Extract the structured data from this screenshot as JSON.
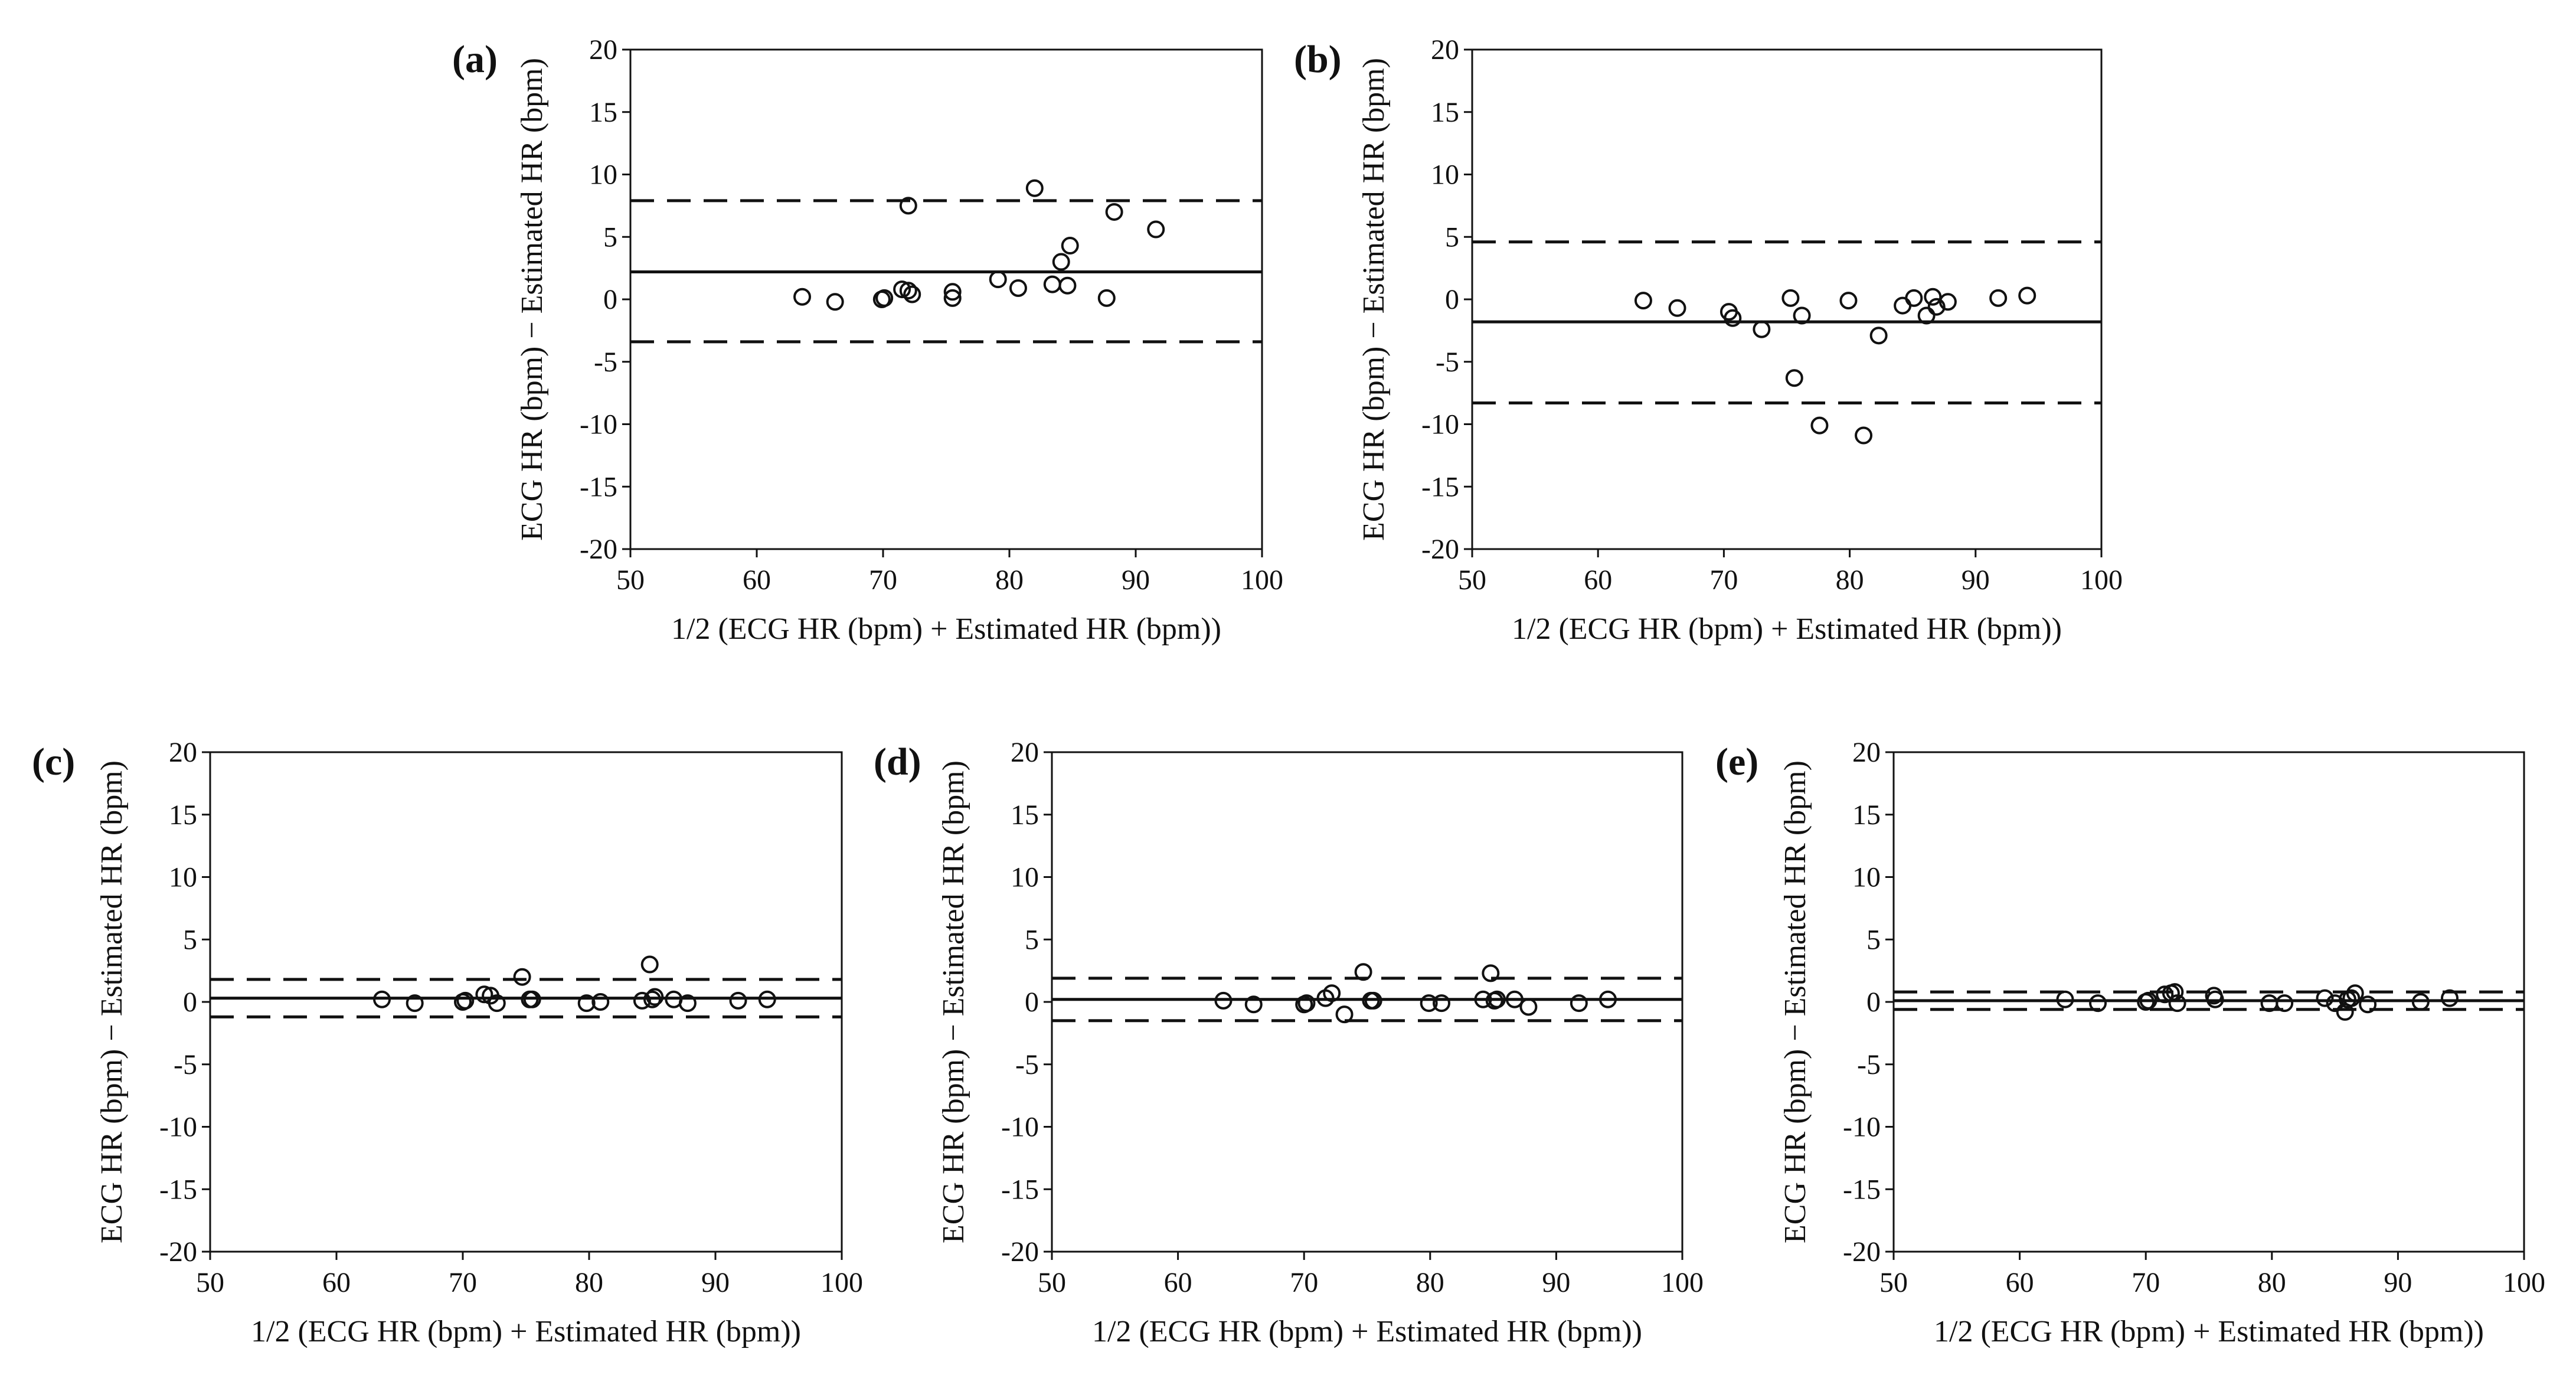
{
  "chart_data": [
    {
      "type": "scatter",
      "panel": "(a)",
      "title": "",
      "xlabel": "1/2 (ECG HR (bpm) + Estimated HR (bpm))",
      "ylabel": "ECG HR (bpm) − Estimated HR (bpm)",
      "xlim": [
        50,
        100
      ],
      "ylim": [
        -20,
        20
      ],
      "xticks": [
        50,
        60,
        70,
        80,
        90,
        100
      ],
      "yticks": [
        -20,
        -15,
        -10,
        -5,
        0,
        5,
        10,
        15,
        20
      ],
      "mean_line": 2.2,
      "limits_of_agreement": [
        7.9,
        -3.4
      ],
      "x": [
        63.6,
        66.2,
        69.9,
        70.1,
        71.5,
        72.0,
        72.3,
        72.0,
        75.5,
        75.5,
        79.1,
        80.7,
        82.0,
        83.4,
        84.1,
        84.8,
        84.6,
        87.7,
        88.3,
        91.6
      ],
      "y": [
        0.2,
        -0.2,
        0.0,
        0.1,
        0.8,
        0.7,
        0.4,
        7.5,
        0.6,
        0.1,
        1.6,
        0.9,
        8.9,
        1.2,
        3.0,
        4.3,
        1.1,
        0.1,
        7.0,
        5.6
      ]
    },
    {
      "type": "scatter",
      "panel": "(b)",
      "title": "",
      "xlabel": "1/2 (ECG HR (bpm) + Estimated HR (bpm))",
      "ylabel": "ECG HR (bpm) − Estimated HR (bpm)",
      "xlim": [
        50,
        100
      ],
      "ylim": [
        -20,
        20
      ],
      "xticks": [
        50,
        60,
        70,
        80,
        90,
        100
      ],
      "yticks": [
        -20,
        -15,
        -10,
        -5,
        0,
        5,
        10,
        15,
        20
      ],
      "mean_line": -1.8,
      "limits_of_agreement": [
        4.6,
        -8.3
      ],
      "x": [
        63.6,
        66.3,
        70.4,
        70.7,
        73.0,
        75.3,
        75.6,
        76.2,
        77.6,
        79.9,
        81.1,
        82.3,
        84.2,
        85.1,
        86.1,
        86.6,
        86.9,
        87.8,
        91.8,
        94.1
      ],
      "y": [
        -0.1,
        -0.7,
        -1.0,
        -1.5,
        -2.4,
        0.1,
        -6.3,
        -1.3,
        -10.1,
        -0.1,
        -10.9,
        -2.9,
        -0.5,
        0.1,
        -1.3,
        0.2,
        -0.6,
        -0.2,
        0.1,
        0.3
      ]
    },
    {
      "type": "scatter",
      "panel": "(c)",
      "title": "",
      "xlabel": "1/2 (ECG HR (bpm) + Estimated HR (bpm))",
      "ylabel": "ECG HR (bpm) − Estimated HR (bpm)",
      "xlim": [
        50,
        100
      ],
      "ylim": [
        -20,
        20
      ],
      "xticks": [
        50,
        60,
        70,
        80,
        90,
        100
      ],
      "yticks": [
        -20,
        -15,
        -10,
        -5,
        0,
        5,
        10,
        15,
        20
      ],
      "mean_line": 0.3,
      "limits_of_agreement": [
        1.8,
        -1.2
      ],
      "x": [
        63.6,
        66.2,
        70.0,
        70.2,
        71.7,
        72.2,
        72.7,
        74.7,
        75.3,
        75.5,
        79.8,
        80.9,
        84.2,
        84.8,
        85.2,
        85.0,
        86.7,
        87.8,
        91.8,
        94.1
      ],
      "y": [
        0.2,
        -0.1,
        0.0,
        0.1,
        0.6,
        0.5,
        -0.1,
        2.0,
        0.2,
        0.2,
        -0.1,
        0.0,
        0.1,
        3.0,
        0.4,
        0.2,
        0.2,
        -0.1,
        0.1,
        0.2
      ]
    },
    {
      "type": "scatter",
      "panel": "(d)",
      "title": "",
      "xlabel": "1/2 (ECG HR (bpm) + Estimated HR (bpm))",
      "ylabel": "ECG HR (bpm) − Estimated HR (bpm)",
      "xlim": [
        50,
        100
      ],
      "ylim": [
        -20,
        20
      ],
      "xticks": [
        50,
        60,
        70,
        80,
        90,
        100
      ],
      "yticks": [
        -20,
        -15,
        -10,
        -5,
        0,
        5,
        10,
        15,
        20
      ],
      "mean_line": 0.2,
      "limits_of_agreement": [
        1.9,
        -1.5
      ],
      "x": [
        63.6,
        66.0,
        70.0,
        70.2,
        71.7,
        72.2,
        73.2,
        74.7,
        75.3,
        75.5,
        79.9,
        80.9,
        84.2,
        84.8,
        85.1,
        85.3,
        86.7,
        87.8,
        91.8,
        94.1
      ],
      "y": [
        0.1,
        -0.2,
        -0.2,
        -0.1,
        0.3,
        0.7,
        -1.0,
        2.4,
        0.1,
        0.1,
        -0.1,
        -0.1,
        0.2,
        2.3,
        0.1,
        0.2,
        0.2,
        -0.4,
        -0.1,
        0.2
      ]
    },
    {
      "type": "scatter",
      "panel": "(e)",
      "title": "",
      "xlabel": "1/2 (ECG HR (bpm) + Estimated HR (bpm))",
      "ylabel": "ECG HR (bpm) − Estimated HR (bpm)",
      "xlim": [
        50,
        100
      ],
      "ylim": [
        -20,
        20
      ],
      "xticks": [
        50,
        60,
        70,
        80,
        90,
        100
      ],
      "yticks": [
        -20,
        -15,
        -10,
        -5,
        0,
        5,
        10,
        15,
        20
      ],
      "mean_line": 0.1,
      "limits_of_agreement": [
        0.8,
        -0.6
      ],
      "x": [
        63.6,
        66.2,
        70.0,
        70.2,
        71.5,
        72.0,
        72.3,
        72.5,
        75.4,
        75.5,
        79.8,
        81.0,
        84.2,
        85.0,
        85.8,
        86.0,
        86.6,
        86.3,
        87.6,
        91.8,
        94.1
      ],
      "y": [
        0.2,
        -0.1,
        0.0,
        0.1,
        0.6,
        0.7,
        0.8,
        -0.1,
        0.5,
        0.2,
        -0.1,
        -0.1,
        0.3,
        -0.1,
        -0.8,
        0.2,
        0.7,
        0.3,
        -0.2,
        0.0,
        0.3
      ]
    }
  ]
}
